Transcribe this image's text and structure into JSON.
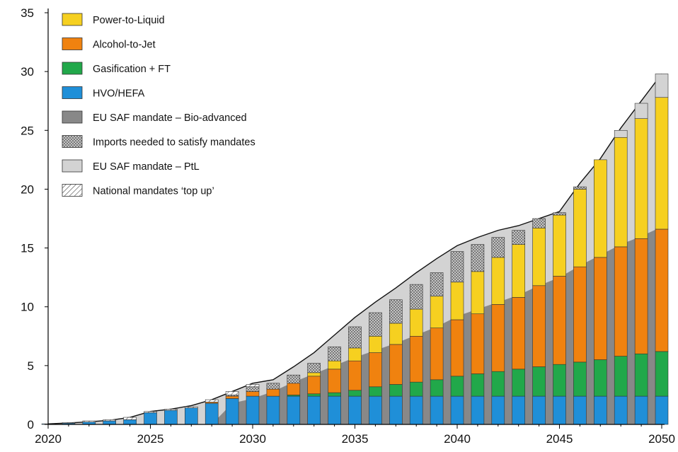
{
  "chart_data": {
    "type": "bar",
    "stacked": true,
    "title": "",
    "xlabel": "",
    "ylabel": "",
    "xlim": [
      2020,
      2050
    ],
    "ylim": [
      0,
      35
    ],
    "yticks": [
      0,
      5,
      10,
      15,
      20,
      25,
      30,
      35
    ],
    "xticks": [
      2020,
      2025,
      2030,
      2035,
      2040,
      2045,
      2050
    ],
    "grid": false,
    "legend_position": "top-left",
    "x": [
      2020,
      2021,
      2022,
      2023,
      2024,
      2025,
      2026,
      2027,
      2028,
      2029,
      2030,
      2031,
      2032,
      2033,
      2034,
      2035,
      2036,
      2037,
      2038,
      2039,
      2040,
      2041,
      2042,
      2043,
      2044,
      2045,
      2046,
      2047,
      2048,
      2049,
      2050
    ],
    "series": [
      {
        "name": "HVO/HEFA",
        "color": "#1f8fd8",
        "pattern": "solid",
        "values": [
          0.05,
          0.1,
          0.2,
          0.3,
          0.4,
          1.0,
          1.2,
          1.4,
          1.8,
          2.2,
          2.4,
          2.4,
          2.4,
          2.4,
          2.4,
          2.4,
          2.4,
          2.4,
          2.4,
          2.4,
          2.4,
          2.4,
          2.4,
          2.4,
          2.4,
          2.4,
          2.4,
          2.4,
          2.4,
          2.4,
          2.4
        ]
      },
      {
        "name": "Gasification + FT",
        "color": "#21a84a",
        "pattern": "solid",
        "values": [
          0,
          0,
          0,
          0,
          0,
          0,
          0,
          0,
          0,
          0,
          0,
          0,
          0.1,
          0.2,
          0.3,
          0.5,
          0.8,
          1.0,
          1.2,
          1.4,
          1.7,
          1.9,
          2.1,
          2.3,
          2.5,
          2.7,
          2.9,
          3.1,
          3.4,
          3.6,
          3.8
        ]
      },
      {
        "name": "Alcohol-to-Jet",
        "color": "#f0820f",
        "pattern": "solid",
        "values": [
          0,
          0,
          0,
          0,
          0,
          0,
          0,
          0,
          0.1,
          0.2,
          0.4,
          0.6,
          1.0,
          1.5,
          2.0,
          2.5,
          2.9,
          3.4,
          3.9,
          4.4,
          4.8,
          5.1,
          5.7,
          6.1,
          6.9,
          7.5,
          8.1,
          8.7,
          9.3,
          9.8,
          10.4
        ]
      },
      {
        "name": "Power-to-Liquid",
        "color": "#f6d020",
        "pattern": "solid",
        "values": [
          0,
          0,
          0,
          0,
          0,
          0,
          0,
          0,
          0,
          0,
          0,
          0,
          0,
          0.3,
          0.7,
          1.1,
          1.4,
          1.8,
          2.3,
          2.7,
          3.2,
          3.6,
          4.0,
          4.5,
          4.9,
          5.2,
          6.6,
          8.3,
          9.3,
          10.2,
          11.2
        ]
      },
      {
        "name": "EU SAF mandate – Bio-advanced",
        "color": "#888888",
        "pattern": "solid",
        "values": [
          0,
          0,
          0,
          0,
          0,
          0,
          0,
          0,
          0,
          0,
          0,
          0,
          0,
          0,
          0,
          0,
          0,
          0,
          0,
          0,
          0,
          0,
          0,
          0,
          0,
          0,
          0,
          0,
          0,
          0,
          0
        ]
      },
      {
        "name": "Imports needed to satisfy mandates",
        "color": "#a8a8a8",
        "pattern": "dots",
        "values": [
          0,
          0,
          0,
          0,
          0,
          0,
          0,
          0,
          0,
          0.1,
          0.4,
          0.5,
          0.7,
          0.8,
          1.2,
          1.8,
          2.0,
          2.0,
          2.1,
          2.0,
          2.6,
          2.3,
          1.7,
          1.2,
          0.8,
          0.2,
          0.2,
          0,
          0,
          0,
          0
        ]
      },
      {
        "name": "EU SAF mandate – PtL",
        "color": "#d3d3d3",
        "pattern": "solid",
        "values": [
          0,
          0,
          0,
          0,
          0,
          0,
          0,
          0,
          0,
          0,
          0,
          0,
          0,
          0,
          0,
          0,
          0,
          0,
          0,
          0,
          0,
          0,
          0,
          0,
          0,
          0,
          0,
          0,
          0.6,
          1.3,
          2.0
        ]
      },
      {
        "name": "National mandates ‘top up’",
        "color": "#ffffff",
        "pattern": "hatch",
        "values": [
          0,
          0.05,
          0.1,
          0.1,
          0.2,
          0.1,
          0.1,
          0.1,
          0.2,
          0.3,
          0.2,
          0,
          0,
          0,
          0,
          0,
          0,
          0,
          0,
          0,
          0,
          0,
          0,
          0,
          0,
          0,
          0,
          0,
          0,
          0,
          0
        ]
      }
    ],
    "envelopes": [
      {
        "name": "EU SAF mandate – Bio-advanced",
        "color": "#888888",
        "values": [
          0,
          0,
          0,
          0,
          0,
          0,
          0,
          0,
          0,
          1.8,
          2.2,
          2.8,
          3.6,
          4.3,
          5.0,
          5.7,
          6.3,
          6.9,
          7.6,
          8.3,
          9.2,
          9.8,
          10.4,
          11.0,
          11.8,
          12.5,
          13.5,
          14.4,
          15.3,
          16.0,
          16.8
        ]
      },
      {
        "name": "EU SAF mandate – PtL",
        "color": "#d3d3d3",
        "values": [
          0.05,
          0.12,
          0.22,
          0.35,
          0.6,
          1.1,
          1.3,
          1.6,
          2.1,
          2.8,
          3.5,
          3.8,
          4.9,
          6.1,
          7.6,
          9.1,
          10.4,
          11.6,
          12.9,
          14.1,
          15.2,
          15.9,
          16.5,
          16.9,
          17.5,
          18.1,
          20.5,
          22.6,
          25.2,
          27.5,
          29.8
        ]
      }
    ]
  }
}
